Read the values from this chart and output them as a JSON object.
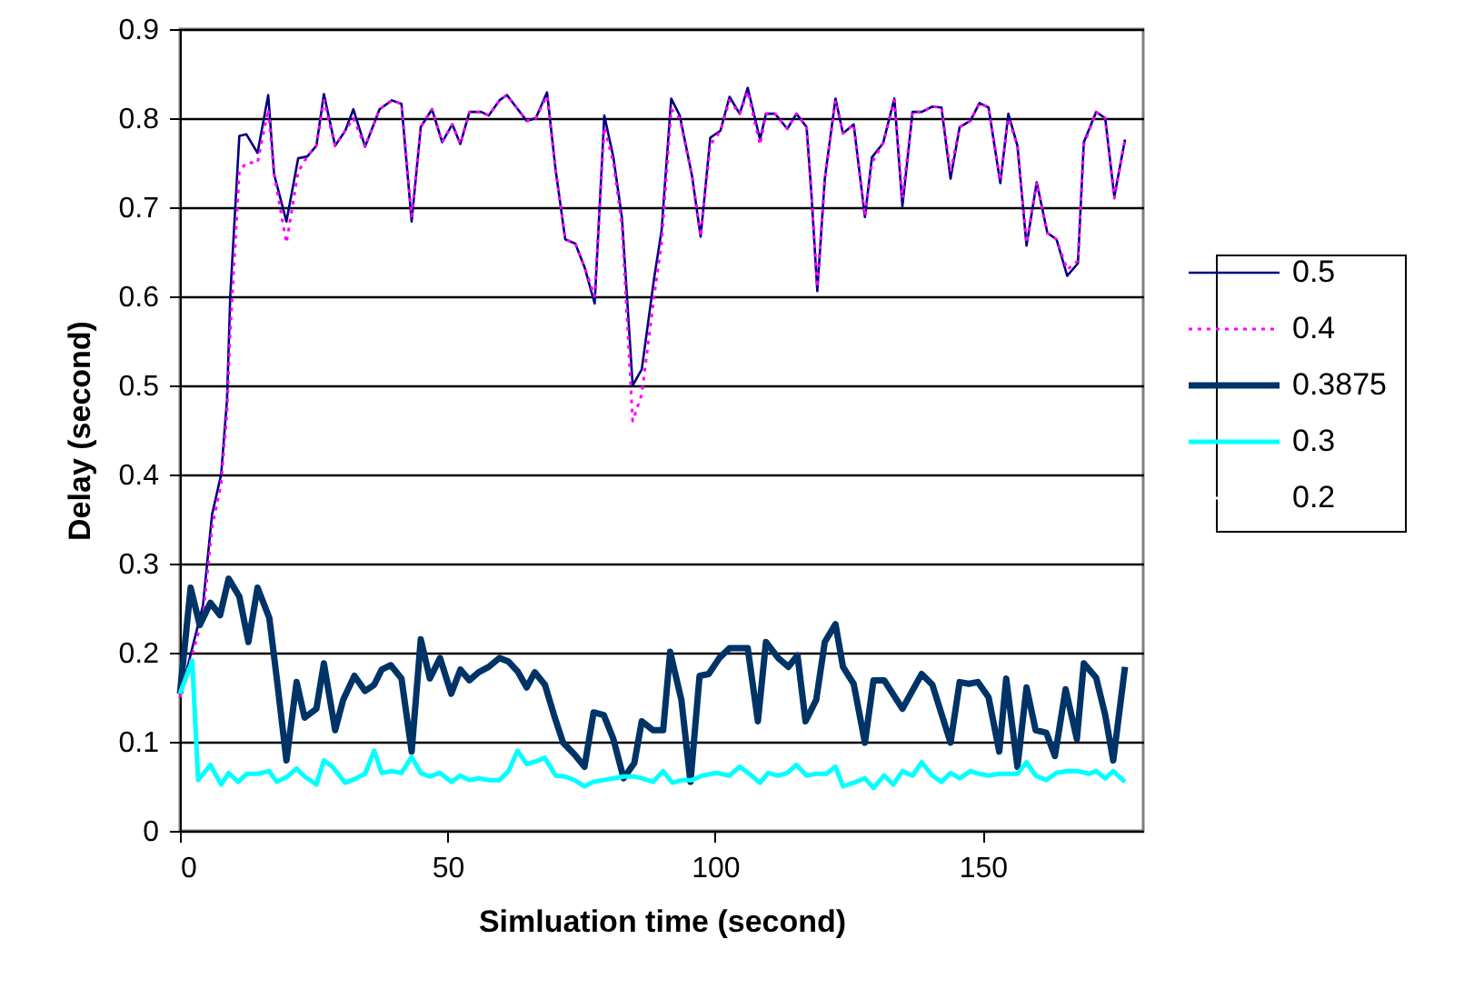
{
  "chart_data": {
    "type": "line",
    "xlabel": "Simluation time (second)",
    "ylabel": "Delay (second)",
    "xlim": [
      0,
      180
    ],
    "xticks": [
      0,
      50,
      100,
      150
    ],
    "ylim": [
      0,
      0.9
    ],
    "yticks": [
      0,
      0.1,
      0.2,
      0.3,
      0.4,
      0.5,
      0.6,
      0.7,
      0.8,
      0.9
    ],
    "grid": "y",
    "legend": "right",
    "marker": "none",
    "series": [
      {
        "name": "0.5",
        "color": "#000080",
        "line_style": "solid",
        "x": [
          0,
          4.3,
          6,
          7.7,
          8.8,
          9.4,
          11.1,
          12.4,
          14.5,
          16.5,
          17.6,
          19.9,
          22.1,
          23.8,
          25.5,
          26.9,
          29,
          30.9,
          32.4,
          34.6,
          37.3,
          39.6,
          41.4,
          43.3,
          45,
          47.1,
          49,
          50.9,
          52.4,
          54.1,
          56.3,
          57.7,
          59.7,
          61.1,
          64.8,
          66.5,
          68.6,
          70.2,
          72,
          73.9,
          75.6,
          77.5,
          79.3,
          81,
          82.6,
          84.6,
          86.3,
          88.6,
          90,
          91.8,
          93.4,
          95.7,
          97.3,
          99.1,
          101,
          102.7,
          104.6,
          106.1,
          108.4,
          109.5,
          111.2,
          113.5,
          115.2,
          117.1,
          118,
          119.1,
          120.5,
          122.5,
          123.9,
          125.9,
          128,
          129.3,
          131.4,
          133.5,
          135,
          136.9,
          138.6,
          140.6,
          142.3,
          144,
          145.7,
          147.7,
          149.4,
          151.1,
          153.3,
          154.8,
          156.5,
          158.2,
          160.1,
          162.1,
          163.8,
          165.8,
          167.8,
          168.9,
          171.2,
          172.9,
          174.6,
          176.6
        ],
        "values": [
          0.15,
          0.253,
          0.355,
          0.4,
          0.484,
          0.6,
          0.78,
          0.782,
          0.761,
          0.826,
          0.737,
          0.684,
          0.755,
          0.757,
          0.769,
          0.827,
          0.769,
          0.786,
          0.81,
          0.768,
          0.81,
          0.82,
          0.816,
          0.684,
          0.79,
          0.81,
          0.773,
          0.793,
          0.771,
          0.807,
          0.807,
          0.803,
          0.82,
          0.826,
          0.797,
          0.8,
          0.829,
          0.742,
          0.664,
          0.659,
          0.633,
          0.592,
          0.803,
          0.756,
          0.688,
          0.5,
          0.518,
          0.62,
          0.674,
          0.822,
          0.803,
          0.735,
          0.667,
          0.778,
          0.786,
          0.824,
          0.805,
          0.834,
          0.776,
          0.805,
          0.805,
          0.788,
          0.805,
          0.79,
          0.715,
          0.606,
          0.732,
          0.822,
          0.783,
          0.793,
          0.689,
          0.756,
          0.772,
          0.822,
          0.701,
          0.807,
          0.807,
          0.813,
          0.812,
          0.732,
          0.79,
          0.797,
          0.817,
          0.812,
          0.727,
          0.805,
          0.769,
          0.657,
          0.728,
          0.671,
          0.664,
          0.623,
          0.637,
          0.773,
          0.807,
          0.8,
          0.712,
          0.776
        ]
      },
      {
        "name": "0.4",
        "color": "#ff00ff",
        "line_style": "dotted",
        "x": [
          0,
          4.3,
          6,
          7.7,
          8.8,
          9.4,
          11.1,
          12.4,
          14.5,
          16.5,
          17.6,
          19.9,
          22.1,
          23.8,
          25.5,
          26.9,
          29,
          30.9,
          32.4,
          34.6,
          37.3,
          39.6,
          41.4,
          43.3,
          45,
          47.1,
          49,
          50.9,
          52.4,
          54.1,
          56.3,
          57.7,
          59.7,
          61.1,
          64.8,
          66.5,
          68.6,
          70.2,
          72,
          73.9,
          75.6,
          77.5,
          79.3,
          81,
          82.6,
          84.6,
          86.3,
          88.6,
          90,
          91.8,
          93.4,
          95.7,
          97.3,
          99.1,
          101,
          102.7,
          104.6,
          106.1,
          108.4,
          109.5,
          111.2,
          113.5,
          115.2,
          117.1,
          118,
          119.1,
          120.5,
          122.5,
          123.9,
          125.9,
          128,
          129.3,
          131.4,
          133.5,
          135,
          136.9,
          138.6,
          140.6,
          142.3,
          144,
          145.7,
          147.7,
          149.4,
          151.1,
          153.3,
          154.8,
          156.5,
          158.2,
          160.1,
          162.1,
          163.8,
          165.8,
          167.8,
          168.9,
          171.2,
          172.9,
          174.6,
          176.6
        ],
        "values": [
          0.15,
          0.24,
          0.34,
          0.39,
          0.47,
          0.56,
          0.74,
          0.75,
          0.75,
          0.81,
          0.737,
          0.66,
          0.74,
          0.757,
          0.769,
          0.82,
          0.769,
          0.786,
          0.8,
          0.768,
          0.81,
          0.82,
          0.816,
          0.69,
          0.79,
          0.81,
          0.773,
          0.793,
          0.771,
          0.807,
          0.807,
          0.803,
          0.82,
          0.826,
          0.797,
          0.8,
          0.825,
          0.742,
          0.664,
          0.659,
          0.633,
          0.6,
          0.79,
          0.75,
          0.68,
          0.46,
          0.49,
          0.6,
          0.66,
          0.81,
          0.8,
          0.735,
          0.667,
          0.77,
          0.786,
          0.82,
          0.805,
          0.83,
          0.77,
          0.805,
          0.805,
          0.788,
          0.805,
          0.79,
          0.715,
          0.61,
          0.73,
          0.82,
          0.783,
          0.793,
          0.69,
          0.75,
          0.772,
          0.82,
          0.71,
          0.807,
          0.807,
          0.813,
          0.812,
          0.74,
          0.79,
          0.797,
          0.817,
          0.812,
          0.73,
          0.8,
          0.769,
          0.66,
          0.728,
          0.671,
          0.664,
          0.63,
          0.64,
          0.77,
          0.807,
          0.8,
          0.71,
          0.776
        ]
      },
      {
        "name": "0.3875",
        "color": "#003366",
        "line_style": "solid",
        "x": [
          0,
          2,
          3.7,
          5.7,
          7.5,
          9.1,
          11.1,
          12.8,
          14.5,
          16.7,
          18.1,
          19.9,
          21.8,
          23.3,
          25.5,
          26.9,
          29,
          30.5,
          32.6,
          34.6,
          36.3,
          37.7,
          39.4,
          41.4,
          43.3,
          45,
          46.7,
          48.6,
          50.7,
          52.4,
          54.1,
          55.8,
          57.7,
          59.7,
          61.4,
          63.1,
          64.8,
          66.3,
          68.2,
          69.9,
          71.6,
          73.7,
          75.6,
          77.3,
          79.2,
          81,
          82.9,
          84.9,
          86.3,
          88.4,
          90.3,
          91.6,
          93.7,
          95.4,
          97.1,
          98.8,
          100.8,
          102.7,
          106.1,
          108,
          109.5,
          111.8,
          113.7,
          115.4,
          116.9,
          118.9,
          120.5,
          122.5,
          123.9,
          125.9,
          128,
          129.6,
          131.6,
          135,
          138.6,
          140.6,
          144,
          145.7,
          147.4,
          149.1,
          151.1,
          153.1,
          154.4,
          156.5,
          158.2,
          159.9,
          161.9,
          163.5,
          165.5,
          167.6,
          168.9,
          171.2,
          172.9,
          174.4,
          176.6
        ],
        "values": [
          0.154,
          0.273,
          0.231,
          0.256,
          0.242,
          0.283,
          0.263,
          0.212,
          0.273,
          0.239,
          0.171,
          0.079,
          0.167,
          0.127,
          0.137,
          0.188,
          0.113,
          0.147,
          0.174,
          0.157,
          0.164,
          0.181,
          0.186,
          0.171,
          0.089,
          0.215,
          0.171,
          0.194,
          0.154,
          0.181,
          0.169,
          0.178,
          0.184,
          0.194,
          0.19,
          0.179,
          0.161,
          0.178,
          0.164,
          0.13,
          0.099,
          0.086,
          0.072,
          0.133,
          0.13,
          0.103,
          0.059,
          0.076,
          0.123,
          0.113,
          0.113,
          0.201,
          0.147,
          0.055,
          0.174,
          0.176,
          0.194,
          0.205,
          0.205,
          0.123,
          0.212,
          0.194,
          0.184,
          0.197,
          0.123,
          0.147,
          0.212,
          0.232,
          0.184,
          0.165,
          0.099,
          0.169,
          0.169,
          0.137,
          0.176,
          0.164,
          0.099,
          0.167,
          0.165,
          0.167,
          0.15,
          0.089,
          0.171,
          0.072,
          0.161,
          0.113,
          0.11,
          0.084,
          0.159,
          0.103,
          0.188,
          0.172,
          0.13,
          0.079,
          0.184
        ]
      },
      {
        "name": "0.3",
        "color": "#00ffff",
        "line_style": "solid",
        "x": [
          0,
          2.3,
          3.4,
          5.7,
          7.7,
          9.1,
          10.9,
          12.5,
          14.5,
          16.7,
          18.1,
          20.1,
          21.8,
          23.3,
          25.5,
          26.9,
          28.5,
          30.9,
          32.6,
          34.6,
          36.3,
          37.7,
          39.6,
          41.4,
          43.3,
          45,
          46.7,
          48.6,
          50.7,
          52.4,
          54.1,
          55.8,
          57.7,
          59.7,
          61.4,
          63.1,
          64.8,
          66.5,
          68.2,
          70.2,
          72,
          73.7,
          75.6,
          77.3,
          79.2,
          81,
          82.9,
          84.9,
          86.3,
          88.4,
          90.3,
          92,
          93.9,
          95.7,
          97.6,
          100.2,
          102.7,
          104.6,
          106.4,
          108.4,
          109.9,
          111.8,
          113.5,
          115.2,
          117.1,
          118.9,
          120.8,
          122.5,
          123.9,
          125.9,
          128,
          129.6,
          131.6,
          133.3,
          135,
          136.9,
          138.6,
          140.6,
          142.3,
          144,
          145.7,
          147.7,
          149.4,
          151.1,
          153.1,
          156.5,
          158.2,
          159.9,
          161.9,
          163.8,
          165.8,
          167.8,
          169.9,
          171.2,
          172.9,
          174.4,
          176.6
        ],
        "values": [
          0.154,
          0.191,
          0.057,
          0.074,
          0.052,
          0.065,
          0.055,
          0.064,
          0.064,
          0.067,
          0.055,
          0.061,
          0.07,
          0.061,
          0.052,
          0.079,
          0.072,
          0.054,
          0.058,
          0.064,
          0.09,
          0.065,
          0.067,
          0.065,
          0.083,
          0.065,
          0.061,
          0.065,
          0.055,
          0.062,
          0.057,
          0.059,
          0.057,
          0.057,
          0.067,
          0.09,
          0.075,
          0.078,
          0.082,
          0.062,
          0.061,
          0.057,
          0.05,
          0.055,
          0.057,
          0.059,
          0.061,
          0.061,
          0.059,
          0.055,
          0.067,
          0.054,
          0.057,
          0.057,
          0.062,
          0.065,
          0.062,
          0.072,
          0.064,
          0.054,
          0.065,
          0.062,
          0.065,
          0.074,
          0.062,
          0.064,
          0.064,
          0.072,
          0.05,
          0.054,
          0.059,
          0.048,
          0.062,
          0.052,
          0.067,
          0.062,
          0.077,
          0.062,
          0.055,
          0.065,
          0.059,
          0.067,
          0.064,
          0.062,
          0.064,
          0.064,
          0.077,
          0.062,
          0.057,
          0.065,
          0.067,
          0.067,
          0.064,
          0.067,
          0.059,
          0.067,
          0.055
        ]
      },
      {
        "name": "0.2"
      }
    ]
  }
}
